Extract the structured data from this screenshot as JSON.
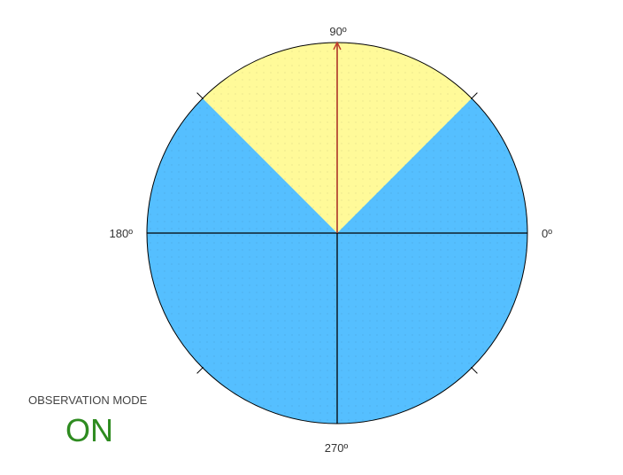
{
  "colors": {
    "background": "#ffffff",
    "base_fill": "#55bfff",
    "sector_fill": "#fffa99",
    "lines": "#000000",
    "pointer": "#c0392b",
    "mode_on": "#2e8b20"
  },
  "dial": {
    "labels": {
      "deg_0": "0º",
      "deg_90": "90º",
      "deg_180": "180º",
      "deg_270": "270º"
    },
    "sector_start_deg": 45,
    "sector_end_deg": 135,
    "pointer_deg": 90,
    "tick_marks_deg": [
      45,
      135,
      225,
      315
    ]
  },
  "mode": {
    "title": "OBSERVATION MODE",
    "value": "ON"
  }
}
